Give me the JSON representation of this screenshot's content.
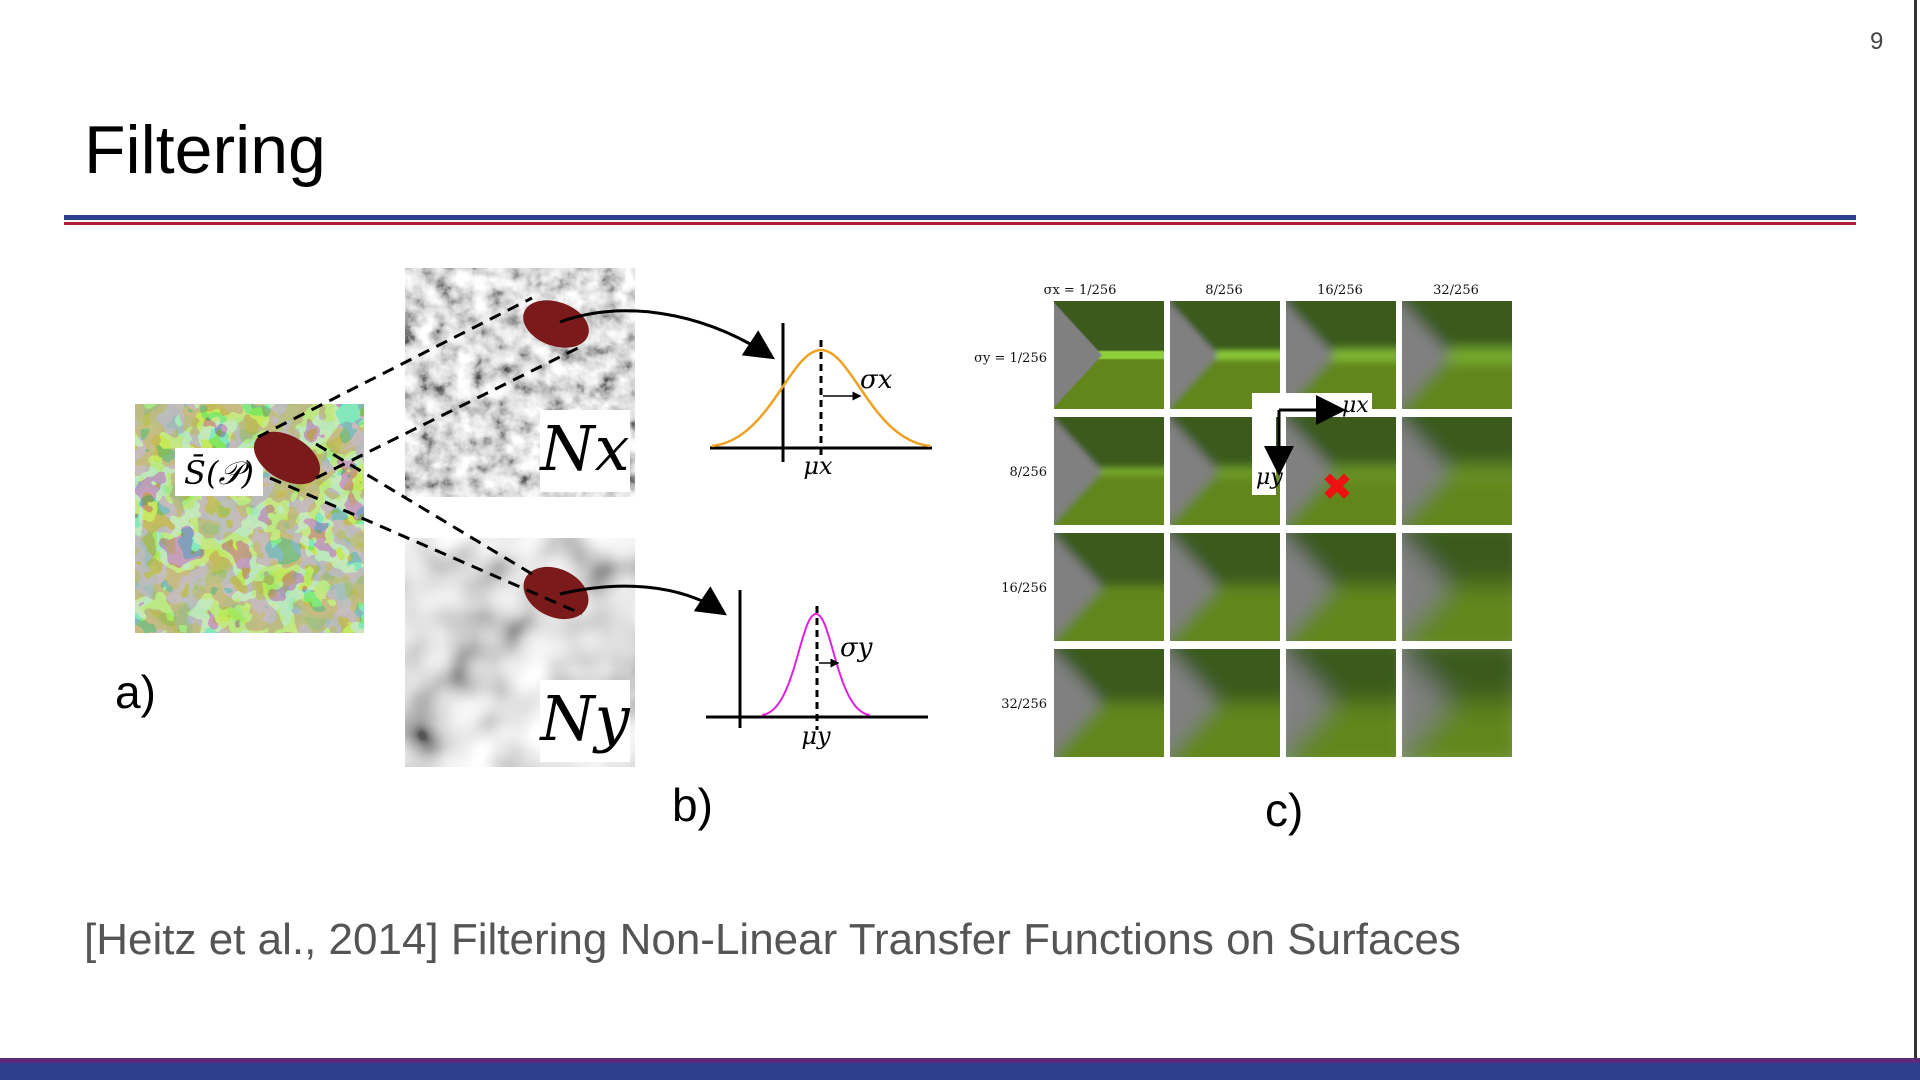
{
  "slide": {
    "page_number": "9",
    "title": "Filtering",
    "labels": {
      "a": "a)",
      "b": "b)",
      "c": "c)"
    },
    "citation": "[Heitz et al., 2014] Filtering Non-Linear Transfer Functions on Surfaces"
  },
  "figure": {
    "panel_a": {
      "tag": "S̄(𝒫)"
    },
    "panel_b": {
      "noise_x": "Nx",
      "noise_y": "Ny",
      "sigma_x": "σx",
      "mu_x": "μx",
      "sigma_y": "σy",
      "mu_y": "μy",
      "curve_x_color": "#f0a020",
      "curve_y_color": "#e020e0"
    },
    "panel_c": {
      "col_headers": [
        "σx = 1/256",
        "8/256",
        "16/256",
        "32/256"
      ],
      "row_headers": [
        "σy = 1/256",
        "8/256",
        "16/256",
        "32/256"
      ],
      "axis_x": "μx",
      "axis_y": "μy",
      "marker_color": "#ee1111"
    },
    "colors": {
      "dark_green": "#3a5a1c",
      "light_green": "#62861e",
      "edge_green": "#8fcf3a",
      "grey": "#808080",
      "ellipse": "#7a1a1a"
    }
  }
}
